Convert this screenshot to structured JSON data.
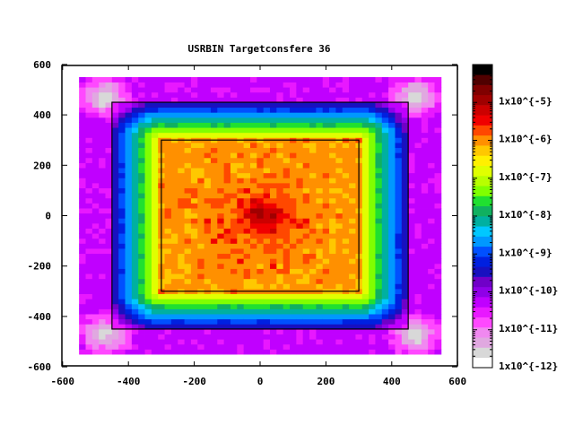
{
  "chart_data": {
    "type": "heatmap",
    "title": "USRBIN Targetconsfere 36",
    "xlabel": "",
    "ylabel": "",
    "xlim": [
      -600,
      600
    ],
    "ylim": [
      -600,
      600
    ],
    "data_extent": [
      -550,
      550
    ],
    "x_ticks": [
      "-600",
      "-400",
      "-200",
      "0",
      "200",
      "400",
      "600"
    ],
    "x_tick_values": [
      -600,
      -400,
      -200,
      0,
      200,
      400,
      600
    ],
    "y_ticks": [
      "600",
      "400",
      "200",
      "0",
      "-200",
      "-400",
      "-600"
    ],
    "y_tick_values": [
      600,
      400,
      200,
      0,
      -200,
      -400,
      -600
    ],
    "inner_box_half_width": 300,
    "outer_box_half_width": 450,
    "colorbar": {
      "log10_range": [
        -12,
        -4
      ],
      "labels": [
        "1x10^{-5}",
        "1x10^{-6}",
        "1x10^{-7}",
        "1x10^{-8}",
        "1x10^{-9}",
        "1x10^{-10}",
        "1x10^{-11}",
        "1x10^{-12}"
      ],
      "label_log10": [
        -5,
        -6,
        -7,
        -8,
        -9,
        -10,
        -11,
        -12
      ],
      "colors_bottom_to_top": [
        "#ffffff",
        "#d8d8d8",
        "#e0a8e0",
        "#f088f0",
        "#ff48ff",
        "#e818ff",
        "#c000ff",
        "#9000e8",
        "#7000c8",
        "#1810c0",
        "#0020e0",
        "#0050ff",
        "#0098ff",
        "#00c8ff",
        "#00b0a0",
        "#10b060",
        "#20e030",
        "#80ff00",
        "#b8ff00",
        "#e0ff00",
        "#fff000",
        "#ffc800",
        "#ff9000",
        "#ff4800",
        "#f00000",
        "#cc0000",
        "#a00000",
        "#800000",
        "#500000",
        "#000000"
      ]
    },
    "field_log10": {
      "inner_region": -6.0,
      "center_peak": -4.7,
      "inner_box_edge": -6.4,
      "outer_box_edge": -9.7,
      "outside": -10.2,
      "outer_corners": -11.8
    }
  }
}
